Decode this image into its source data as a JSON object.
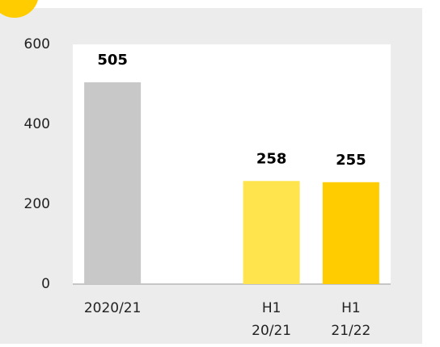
{
  "chart_data": {
    "type": "bar",
    "categories": [
      "2020/21",
      null,
      "H1 20/21",
      "H1 21/22"
    ],
    "values": [
      505,
      null,
      258,
      255
    ],
    "colors": [
      "#c8c8c8",
      null,
      "#ffe44d",
      "#ffcc00"
    ],
    "ylim": [
      0,
      600
    ],
    "yticks": [
      0,
      200,
      400,
      600
    ],
    "grid": false
  }
}
